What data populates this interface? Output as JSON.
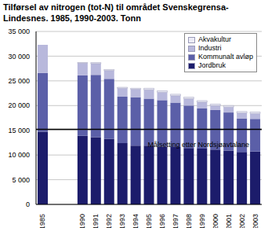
{
  "chart_data": {
    "type": "bar",
    "title": "Tilførsel av nitrogen (tot-N) til området Svenskegrensa-Lindesnes. 1985, 1990-2003. Tonn",
    "categories": [
      "1985",
      null,
      null,
      "1990",
      "1991",
      "1992",
      "1993",
      "1994",
      "1995",
      "1996",
      "1997",
      "1998",
      "1999",
      "2000",
      "2001",
      "2002",
      "2003"
    ],
    "series": [
      {
        "name": "Jordbruk",
        "color": "#1c1c6b",
        "values": [
          14700,
          null,
          null,
          13900,
          13600,
          13300,
          12400,
          11900,
          11900,
          11700,
          11600,
          11400,
          11300,
          11100,
          10900,
          10600,
          10700
        ]
      },
      {
        "name": "Kommunalt avløp",
        "color": "#5b5fa8",
        "values": [
          11900,
          null,
          null,
          12200,
          12600,
          12100,
          9400,
          9800,
          9500,
          9400,
          9000,
          8600,
          8100,
          8000,
          7700,
          6800,
          6600
        ]
      },
      {
        "name": "Industri",
        "color": "#b8b8dc",
        "values": [
          5700,
          null,
          null,
          2500,
          2300,
          1700,
          1700,
          1600,
          1800,
          1600,
          1400,
          1400,
          1300,
          900,
          1100,
          1100,
          1100
        ]
      },
      {
        "name": "Akvakultur",
        "color": "#ececf6",
        "values": [
          0,
          null,
          null,
          100,
          200,
          200,
          200,
          200,
          300,
          300,
          300,
          300,
          300,
          300,
          300,
          300,
          300
        ]
      }
    ],
    "stacked": true,
    "ylim": [
      0,
      35000
    ],
    "yticks": [
      0,
      {
        "value": 5000,
        "label": "5 000"
      },
      {
        "value": 10000,
        "label": "10 000"
      },
      {
        "value": 15000,
        "label": "15 000"
      },
      {
        "value": 20000,
        "label": "20 000"
      },
      {
        "value": 25000,
        "label": "25 000"
      },
      {
        "value": 30000,
        "label": "30 000"
      },
      {
        "value": 35000,
        "label": "35 000"
      }
    ],
    "grid": true,
    "legend": "upper right",
    "reference_line": {
      "value": 15200,
      "label": "Målsetting etter Nordsjøavtalane"
    }
  }
}
